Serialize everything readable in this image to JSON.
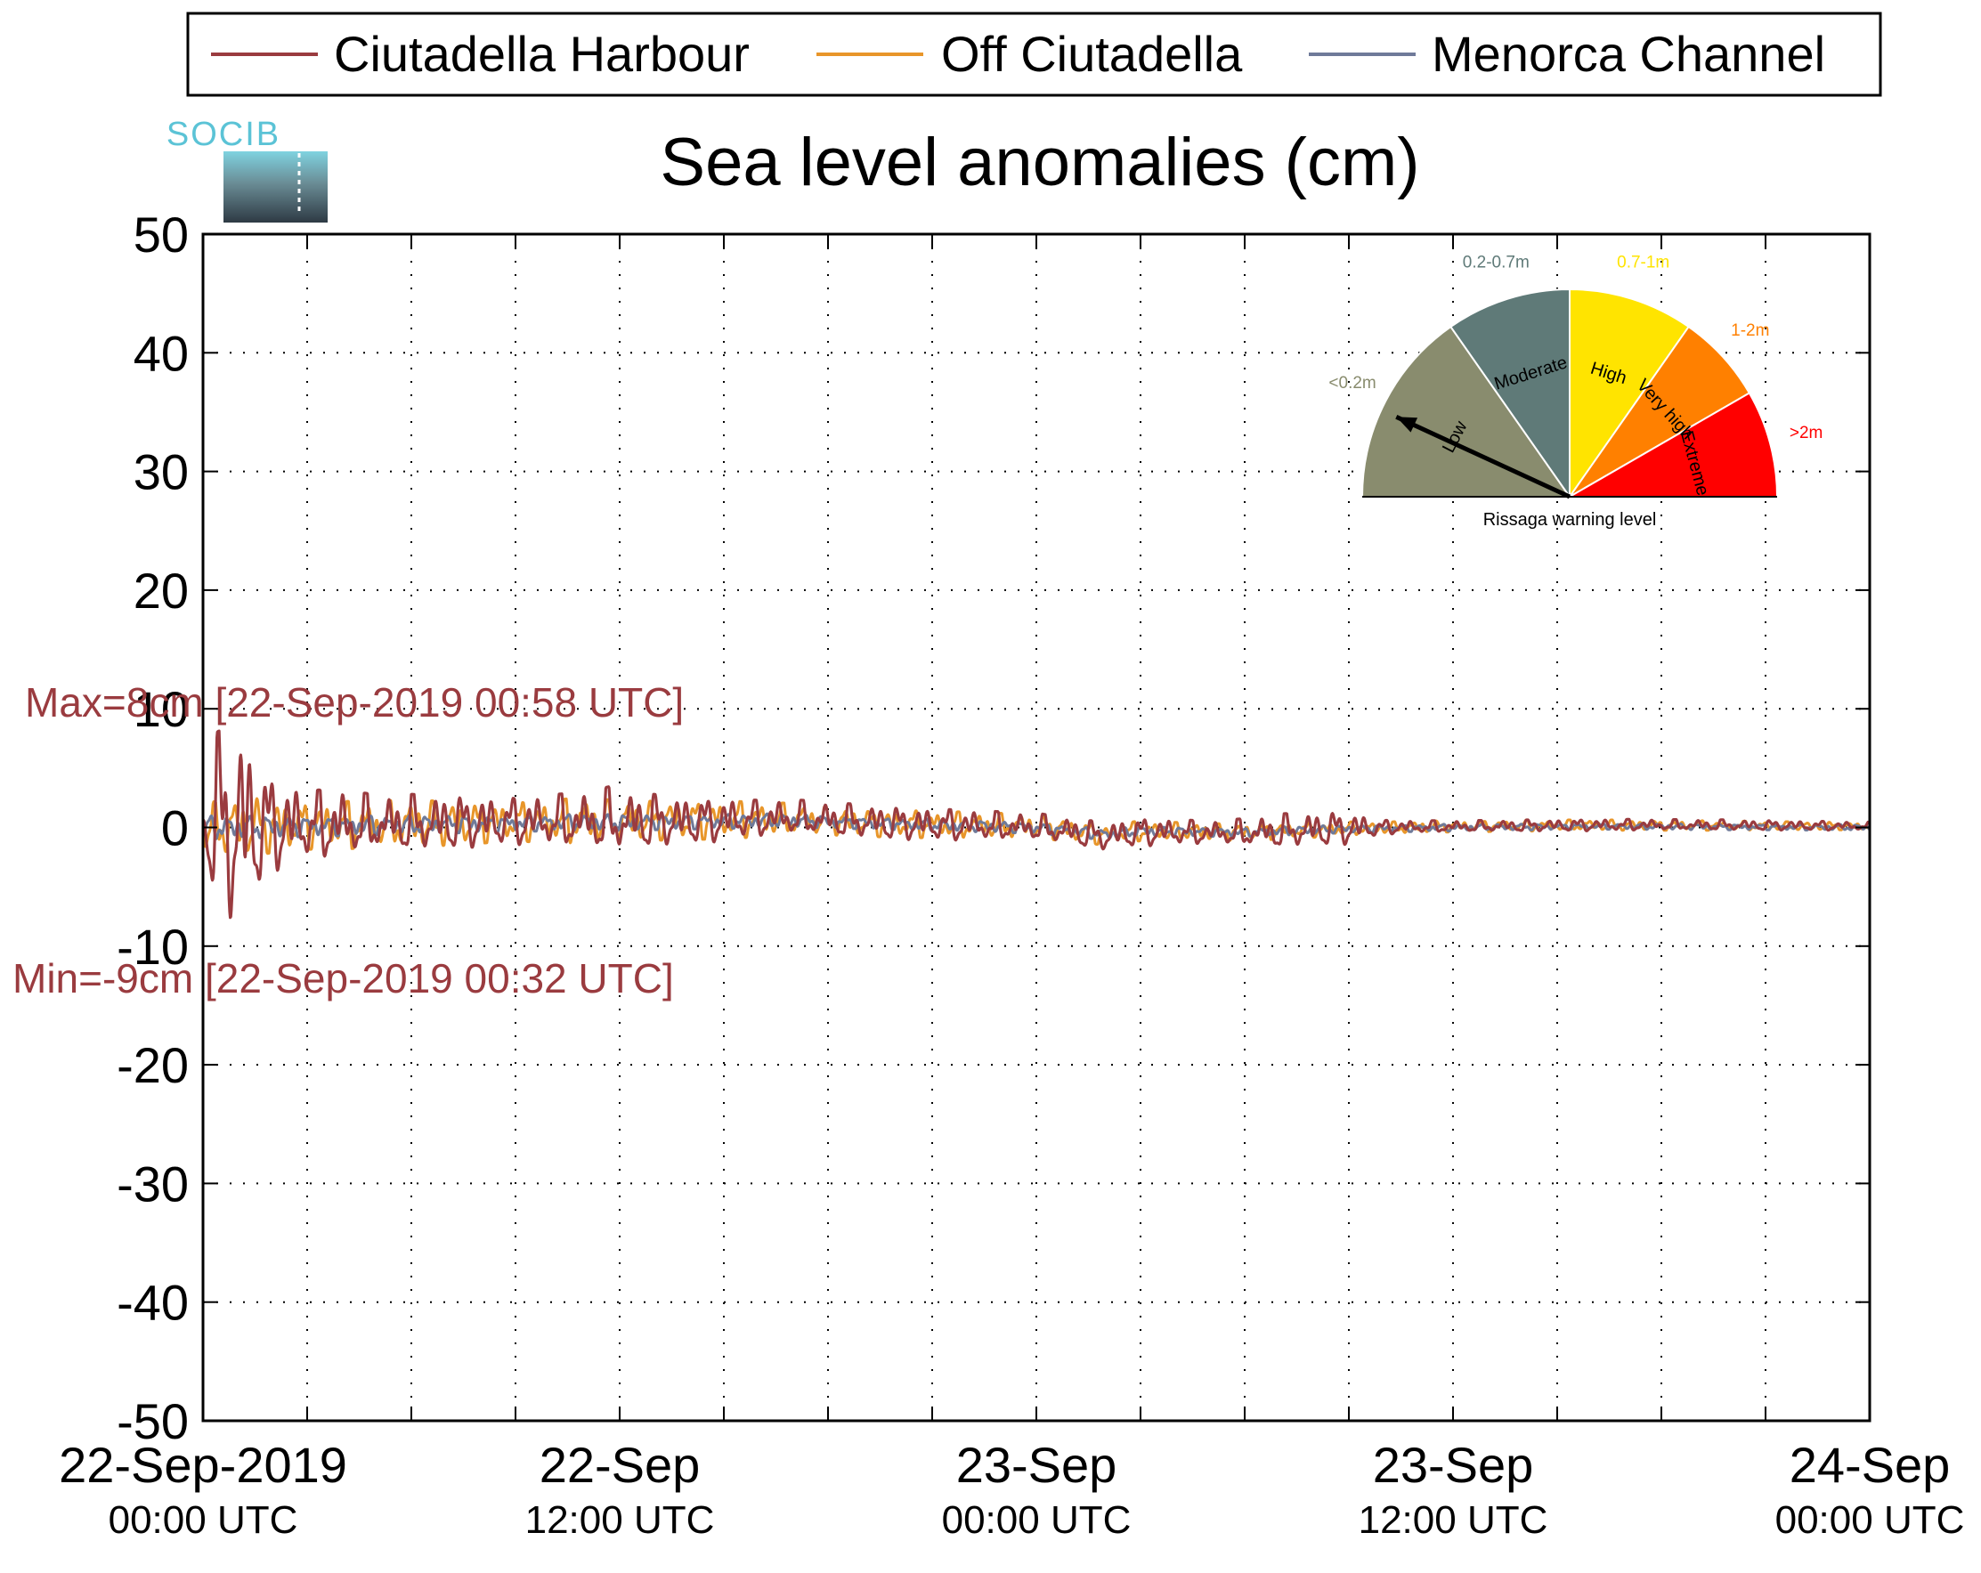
{
  "logo_text": "SOCIB",
  "chart_data": {
    "type": "line",
    "title": "Sea level anomalies (cm)",
    "xlabel": "",
    "ylabel": "",
    "ylim": [
      -50,
      50
    ],
    "yticks": [
      50,
      40,
      30,
      20,
      10,
      0,
      -10,
      -20,
      -30,
      -40,
      -50
    ],
    "xlim_hours": [
      0,
      48
    ],
    "x_unit": "hours since 22-Sep-2019 00:00 UTC",
    "xtick_hours": [
      0,
      3,
      6,
      9,
      12,
      15,
      18,
      21,
      24,
      27,
      30,
      33,
      36,
      39,
      42,
      45,
      48
    ],
    "xtick_labels": [
      {
        "hour": 0,
        "date": "22-Sep-2019",
        "time": "00:00 UTC"
      },
      {
        "hour": 12,
        "date": "22-Sep",
        "time": "12:00 UTC"
      },
      {
        "hour": 24,
        "date": "23-Sep",
        "time": "00:00 UTC"
      },
      {
        "hour": 36,
        "date": "23-Sep",
        "time": "12:00 UTC"
      },
      {
        "hour": 48,
        "date": "24-Sep",
        "time": "00:00 UTC"
      }
    ],
    "grid": true,
    "legend_position": "top",
    "series": [
      {
        "name": "Ciutadella Harbour",
        "color": "#9a3b3f",
        "envelope": [
          [
            0,
            1
          ],
          [
            0.4,
            8
          ],
          [
            0.9,
            9
          ],
          [
            1.5,
            6
          ],
          [
            2,
            4
          ],
          [
            3,
            3
          ],
          [
            4,
            3
          ],
          [
            5,
            2.5
          ],
          [
            6,
            2.5
          ],
          [
            9,
            2
          ],
          [
            11,
            2.5
          ],
          [
            11.8,
            3
          ],
          [
            12.3,
            2.5
          ],
          [
            14,
            2
          ],
          [
            16,
            1.6
          ],
          [
            20,
            1.4
          ],
          [
            24,
            1.2
          ],
          [
            27,
            1.2
          ],
          [
            29,
            1
          ],
          [
            31,
            1.5
          ],
          [
            33,
            1.4
          ],
          [
            34,
            0.6
          ],
          [
            36,
            0.5
          ],
          [
            40,
            0.5
          ],
          [
            44,
            0.45
          ],
          [
            48,
            0.35
          ]
        ],
        "offset": [
          [
            0,
            0
          ],
          [
            10,
            0.5
          ],
          [
            14,
            0.5
          ],
          [
            17,
            0.8
          ],
          [
            20,
            0.3
          ],
          [
            24,
            0
          ],
          [
            26,
            -0.8
          ],
          [
            27,
            -0.4
          ],
          [
            30,
            -0.5
          ],
          [
            32,
            -0.2
          ],
          [
            34,
            0
          ],
          [
            40,
            0.2
          ],
          [
            44,
            0.2
          ],
          [
            48,
            0.1
          ]
        ]
      },
      {
        "name": "Off Ciutadella",
        "color": "#e8962a",
        "envelope": [
          [
            0,
            2
          ],
          [
            1,
            2.5
          ],
          [
            3,
            2
          ],
          [
            6,
            2
          ],
          [
            9,
            1.6
          ],
          [
            11,
            2
          ],
          [
            12,
            1.7
          ],
          [
            15,
            1.6
          ],
          [
            18,
            1.2
          ],
          [
            22,
            1.1
          ],
          [
            24,
            1
          ],
          [
            26,
            0.9
          ],
          [
            29,
            0.7
          ],
          [
            31,
            0.7
          ],
          [
            34,
            0.5
          ],
          [
            40,
            0.45
          ],
          [
            44,
            0.4
          ],
          [
            48,
            0.3
          ]
        ],
        "offset": [
          [
            0,
            0
          ],
          [
            10,
            0.5
          ],
          [
            14,
            0.6
          ],
          [
            17,
            0.7
          ],
          [
            20,
            0.3
          ],
          [
            24,
            0.1
          ],
          [
            26,
            -0.6
          ],
          [
            27,
            -0.3
          ],
          [
            30,
            -0.4
          ],
          [
            33,
            -0.1
          ],
          [
            36,
            0.1
          ],
          [
            40,
            0.2
          ],
          [
            48,
            0.1
          ]
        ]
      },
      {
        "name": "Menorca Channel",
        "color": "#6f7a99",
        "envelope": [
          [
            0,
            1
          ],
          [
            3,
            0.9
          ],
          [
            6,
            0.8
          ],
          [
            9,
            0.7
          ],
          [
            12,
            0.7
          ],
          [
            16,
            0.6
          ],
          [
            20,
            0.5
          ],
          [
            24,
            0.5
          ],
          [
            28,
            0.4
          ],
          [
            32,
            0.35
          ],
          [
            36,
            0.3
          ],
          [
            40,
            0.25
          ],
          [
            48,
            0.25
          ]
        ],
        "offset": [
          [
            0,
            0
          ],
          [
            10,
            0.4
          ],
          [
            14,
            0.5
          ],
          [
            17,
            0.6
          ],
          [
            20,
            0.3
          ],
          [
            24,
            0
          ],
          [
            26,
            -0.6
          ],
          [
            27,
            -0.3
          ],
          [
            30,
            -0.4
          ],
          [
            33,
            -0.1
          ],
          [
            36,
            0
          ],
          [
            40,
            0.1
          ],
          [
            48,
            0
          ]
        ]
      }
    ],
    "annotations": {
      "max": {
        "text": "Max=8cm [22-Sep-2019 00:58 UTC]",
        "value": 8,
        "color": "#9a3b3f"
      },
      "min": {
        "text": "Min=-9cm [22-Sep-2019 00:32 UTC]",
        "value": -9,
        "color": "#9a3b3f"
      }
    }
  },
  "gauge": {
    "caption": "Rissaga warning level",
    "needle_level": "Low",
    "levels": [
      {
        "name": "Low",
        "range": "<0.2m",
        "color": "#898c6e",
        "range_color": "#898c6e"
      },
      {
        "name": "Moderate",
        "range": "0.2-0.7m",
        "color": "#5f7a78",
        "range_color": "#5f7a78"
      },
      {
        "name": "High",
        "range": "0.7-1m",
        "color": "#ffe400",
        "range_color": "#ffe400"
      },
      {
        "name": "Very high",
        "range": "1-2m",
        "color": "#ff8000",
        "range_color": "#ff8000"
      },
      {
        "name": "Extreme",
        "range": ">2m",
        "color": "#ff0000",
        "range_color": "#ff0000"
      }
    ]
  }
}
